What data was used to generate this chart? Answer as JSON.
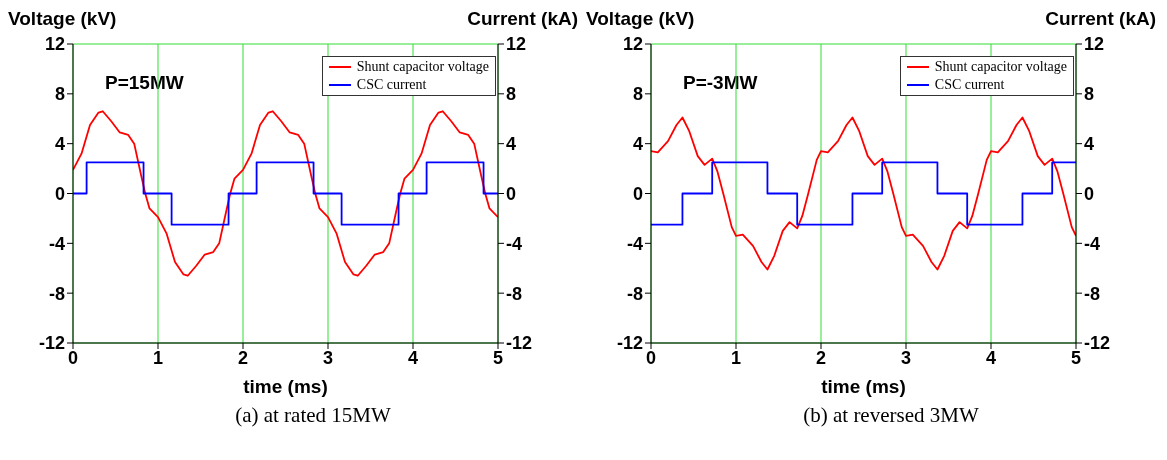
{
  "chart_data": [
    {
      "type": "line",
      "title": "(a) at rated 15MW",
      "annotations": [
        "P=15MW"
      ],
      "xlabel": "time (ms)",
      "ylabel": "Voltage (kV)",
      "y2label": "Current (kA)",
      "xlim": [
        0,
        5
      ],
      "xticks": [
        0,
        1,
        2,
        3,
        4,
        5
      ],
      "ylim": [
        -12,
        12
      ],
      "yticks": [
        -12,
        -8,
        -4,
        0,
        4,
        8,
        12
      ],
      "y2lim": [
        -12,
        12
      ],
      "y2ticks": [
        -12,
        -8,
        -4,
        0,
        4,
        8,
        12
      ],
      "grid": true,
      "legend": "top right",
      "marker": "none",
      "line_style": "solid",
      "series": [
        {
          "name": "Shunt capacitor voltage",
          "color": "#ff0000",
          "x": [
            0,
            0.1,
            0.2,
            0.3,
            0.35,
            0.45,
            0.55,
            0.65,
            0.72,
            0.8,
            0.85,
            0.9,
            1,
            1.1,
            1.2,
            1.3,
            1.35,
            1.45,
            1.55,
            1.65,
            1.72,
            1.8,
            1.85,
            1.9,
            2,
            2.1,
            2.2,
            2.3,
            2.35,
            2.45,
            2.55,
            2.65,
            2.72,
            2.8,
            2.85,
            2.9,
            3,
            3.1,
            3.2,
            3.3,
            3.35,
            3.45,
            3.55,
            3.65,
            3.72,
            3.8,
            3.85,
            3.9,
            4,
            4.1,
            4.2,
            4.3,
            4.35,
            4.45,
            4.55,
            4.65,
            4.72,
            4.8,
            4.85,
            4.9,
            5
          ],
          "values": [
            1.9,
            3.2,
            5.5,
            6.5,
            6.6,
            5.8,
            4.9,
            4.7,
            4.0,
            1.5,
            0,
            -1.2,
            -1.9,
            -3.2,
            -5.5,
            -6.5,
            -6.6,
            -5.8,
            -4.9,
            -4.7,
            -4.0,
            -1.5,
            0,
            1.2,
            1.9,
            3.2,
            5.5,
            6.5,
            6.6,
            5.8,
            4.9,
            4.7,
            4.0,
            1.5,
            0,
            -1.2,
            -1.9,
            -3.2,
            -5.5,
            -6.5,
            -6.6,
            -5.8,
            -4.9,
            -4.7,
            -4.0,
            -1.5,
            0,
            1.2,
            1.9,
            3.2,
            5.5,
            6.5,
            6.6,
            5.8,
            4.9,
            4.7,
            4.0,
            1.5,
            0,
            -1.2,
            -1.9
          ]
        },
        {
          "name": "CSC current",
          "color": "#0000ff",
          "axis": "y2",
          "x": [
            0,
            0.16,
            0.16,
            0.83,
            0.83,
            1.16,
            1.16,
            1.83,
            1.83,
            2.16,
            2.16,
            2.83,
            2.83,
            3.16,
            3.16,
            3.83,
            3.83,
            4.16,
            4.16,
            4.83,
            4.83,
            5
          ],
          "values": [
            0,
            0,
            2.5,
            2.5,
            0,
            0,
            -2.5,
            -2.5,
            0,
            0,
            2.5,
            2.5,
            0,
            0,
            -2.5,
            -2.5,
            0,
            0,
            2.5,
            2.5,
            0,
            0
          ]
        }
      ]
    },
    {
      "type": "line",
      "title": "(b) at reversed 3MW",
      "annotations": [
        "P=-3MW"
      ],
      "xlabel": "time (ms)",
      "ylabel": "Voltage (kV)",
      "y2label": "Current (kA)",
      "xlim": [
        0,
        5
      ],
      "xticks": [
        0,
        1,
        2,
        3,
        4,
        5
      ],
      "ylim": [
        -12,
        12
      ],
      "yticks": [
        -12,
        -8,
        -4,
        0,
        4,
        8,
        12
      ],
      "y2lim": [
        -12,
        12
      ],
      "y2ticks": [
        -12,
        -8,
        -4,
        0,
        4,
        8,
        12
      ],
      "grid": true,
      "legend": "top right",
      "marker": "none",
      "line_style": "solid",
      "series": [
        {
          "name": "Shunt capacitor voltage",
          "color": "#ff0000",
          "x": [
            0,
            0.08,
            0.2,
            0.3,
            0.37,
            0.45,
            0.55,
            0.63,
            0.72,
            0.78,
            0.85,
            0.95,
            1,
            1.08,
            1.2,
            1.3,
            1.37,
            1.45,
            1.55,
            1.63,
            1.72,
            1.78,
            1.85,
            1.95,
            2,
            2.08,
            2.2,
            2.3,
            2.37,
            2.45,
            2.55,
            2.63,
            2.72,
            2.78,
            2.85,
            2.95,
            3,
            3.08,
            3.2,
            3.3,
            3.37,
            3.45,
            3.55,
            3.63,
            3.72,
            3.78,
            3.85,
            3.95,
            4,
            4.08,
            4.2,
            4.3,
            4.37,
            4.45,
            4.55,
            4.63,
            4.72,
            4.78,
            4.85,
            4.95,
            5
          ],
          "values": [
            3.4,
            3.3,
            4.2,
            5.5,
            6.1,
            5.0,
            3.0,
            2.3,
            2.8,
            1.8,
            0,
            -2.7,
            -3.4,
            -3.3,
            -4.2,
            -5.5,
            -6.1,
            -5.0,
            -3.0,
            -2.3,
            -2.8,
            -1.8,
            0,
            2.7,
            3.4,
            3.3,
            4.2,
            5.5,
            6.1,
            5.0,
            3.0,
            2.3,
            2.8,
            1.8,
            0,
            -2.7,
            -3.4,
            -3.3,
            -4.2,
            -5.5,
            -6.1,
            -5.0,
            -3.0,
            -2.3,
            -2.8,
            -1.8,
            0,
            2.7,
            3.4,
            3.3,
            4.2,
            5.5,
            6.1,
            5.0,
            3.0,
            2.3,
            2.8,
            1.8,
            0,
            -2.7,
            -3.4
          ]
        },
        {
          "name": "CSC current",
          "color": "#0000ff",
          "axis": "y2",
          "x": [
            0,
            0.37,
            0.37,
            0.72,
            0.72,
            1.37,
            1.37,
            1.72,
            1.72,
            2.37,
            2.37,
            2.72,
            2.72,
            3.37,
            3.37,
            3.72,
            3.72,
            4.37,
            4.37,
            4.72,
            4.72,
            5
          ],
          "values": [
            -2.5,
            -2.5,
            0,
            0,
            2.5,
            2.5,
            0,
            0,
            -2.5,
            -2.5,
            0,
            0,
            2.5,
            2.5,
            0,
            0,
            -2.5,
            -2.5,
            0,
            0,
            2.5,
            2.5
          ]
        }
      ]
    }
  ]
}
